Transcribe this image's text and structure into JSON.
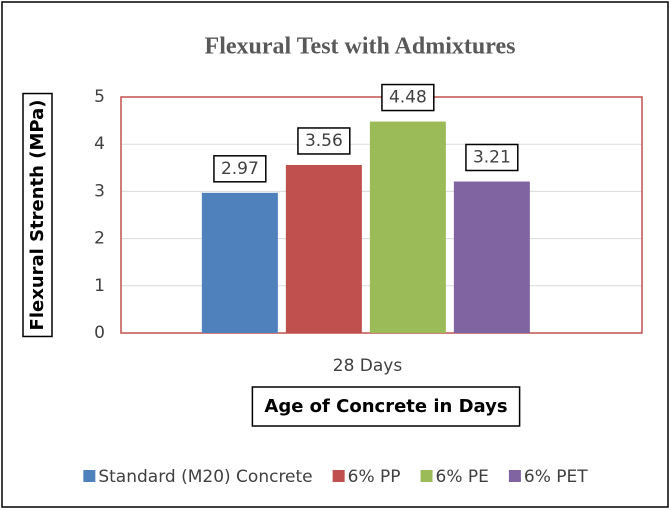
{
  "chart_data": {
    "type": "bar",
    "title": "Flexural Test with Admixtures",
    "x_label": "Age of Concrete in Days",
    "y_label": "Flexural Strenth (MPa)",
    "categories": [
      "28 Days"
    ],
    "series": [
      {
        "name": "Standard (M20) Concrete",
        "color": "#4f81bd",
        "values": [
          2.97
        ]
      },
      {
        "name": "6% PP",
        "color": "#c0504d",
        "values": [
          3.56
        ]
      },
      {
        "name": "6% PE",
        "color": "#9bbb59",
        "values": [
          4.48
        ]
      },
      {
        "name": "6% PET",
        "color": "#8064a2",
        "values": [
          3.21
        ]
      }
    ],
    "ylim": [
      0,
      5
    ],
    "yticks": [
      0,
      1,
      2,
      3,
      4,
      5
    ],
    "grid": true,
    "legend": "bottom"
  }
}
